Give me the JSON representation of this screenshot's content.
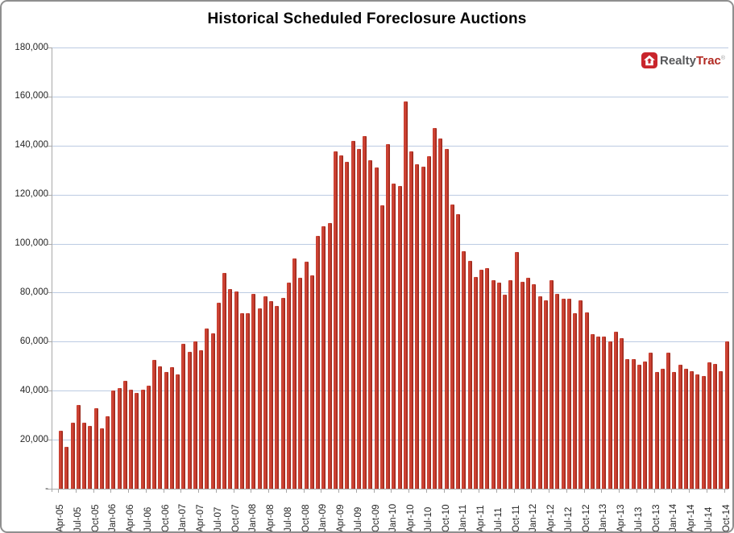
{
  "title": "Historical Scheduled Foreclosure Auctions",
  "logo": {
    "realty": "Realty",
    "trac": "Trac",
    "registered_mark": "®",
    "icon": "house-icon",
    "realty_color": "#58595b",
    "trac_color": "#b22a23",
    "box_color": "#c9252c"
  },
  "chart_data": {
    "type": "bar",
    "title": "Historical Scheduled Foreclosure Auctions",
    "xlabel": "",
    "ylabel": "",
    "ylim": [
      0,
      180000
    ],
    "y_tick_step": 20000,
    "y_tick_labels_top_down": [
      "180,000",
      "160,000",
      "140,000",
      "120,000",
      "100,000",
      "80,000",
      "60,000",
      "40,000",
      "20,000",
      "-"
    ],
    "x_label_every": 3,
    "grid": true,
    "legend": "none",
    "gridline_color": "#bccbe2",
    "axis_color": "#a8a8a8",
    "bar_color": "#c0392b",
    "bar_gradient": [
      "#b23222",
      "#d04536",
      "#cd4133",
      "#a52c1f",
      "#8e2316"
    ],
    "categories": [
      "Apr-05",
      "May-05",
      "Jun-05",
      "Jul-05",
      "Aug-05",
      "Sep-05",
      "Oct-05",
      "Nov-05",
      "Dec-05",
      "Jan-06",
      "Feb-06",
      "Mar-06",
      "Apr-06",
      "May-06",
      "Jun-06",
      "Jul-06",
      "Aug-06",
      "Sep-06",
      "Oct-06",
      "Nov-06",
      "Dec-06",
      "Jan-07",
      "Feb-07",
      "Mar-07",
      "Apr-07",
      "May-07",
      "Jun-07",
      "Jul-07",
      "Aug-07",
      "Sep-07",
      "Oct-07",
      "Nov-07",
      "Dec-07",
      "Jan-08",
      "Feb-08",
      "Mar-08",
      "Apr-08",
      "May-08",
      "Jun-08",
      "Jul-08",
      "Aug-08",
      "Sep-08",
      "Oct-08",
      "Nov-08",
      "Dec-08",
      "Jan-09",
      "Feb-09",
      "Mar-09",
      "Apr-09",
      "May-09",
      "Jun-09",
      "Jul-09",
      "Aug-09",
      "Sep-09",
      "Oct-09",
      "Nov-09",
      "Dec-09",
      "Jan-10",
      "Feb-10",
      "Mar-10",
      "Apr-10",
      "May-10",
      "Jun-10",
      "Jul-10",
      "Aug-10",
      "Sep-10",
      "Oct-10",
      "Nov-10",
      "Dec-10",
      "Jan-11",
      "Feb-11",
      "Mar-11",
      "Apr-11",
      "May-11",
      "Jun-11",
      "Jul-11",
      "Aug-11",
      "Sep-11",
      "Oct-11",
      "Nov-11",
      "Dec-11",
      "Jan-12",
      "Feb-12",
      "Mar-12",
      "Apr-12",
      "May-12",
      "Jun-12",
      "Jul-12",
      "Aug-12",
      "Sep-12",
      "Oct-12",
      "Nov-12",
      "Dec-12",
      "Jan-13",
      "Feb-13",
      "Mar-13",
      "Apr-13",
      "May-13",
      "Jun-13",
      "Jul-13",
      "Aug-13",
      "Sep-13",
      "Oct-13",
      "Nov-13",
      "Dec-13",
      "Jan-14",
      "Feb-14",
      "Mar-14",
      "Apr-14",
      "May-14",
      "Jun-14",
      "Jul-14",
      "Aug-14",
      "Sep-14",
      "Oct-14"
    ],
    "values": [
      23500,
      17000,
      27000,
      34000,
      27000,
      25500,
      33000,
      24500,
      29500,
      40000,
      41000,
      44000,
      40500,
      39000,
      40500,
      42000,
      52500,
      50000,
      47500,
      49500,
      46500,
      59000,
      56000,
      60000,
      56500,
      65500,
      63500,
      76000,
      88000,
      81500,
      80500,
      71500,
      71500,
      79500,
      73500,
      78500,
      76500,
      74500,
      78000,
      84000,
      94000,
      86000,
      92500,
      87000,
      103000,
      107000,
      108500,
      137500,
      136000,
      133500,
      142000,
      138500,
      144000,
      134000,
      131000,
      115500,
      140500,
      124500,
      123500,
      158000,
      137500,
      132500,
      131500,
      135500,
      147000,
      143000,
      138500,
      116000,
      112000,
      97000,
      93000,
      86500,
      89500,
      90000,
      85000,
      84000,
      79000,
      85000,
      96500,
      84500,
      86000,
      83500,
      78500,
      77000,
      85000,
      79500,
      77500,
      77500,
      71500,
      77000,
      72000,
      63000,
      62000,
      62000,
      60000,
      64000,
      61500,
      53000,
      53000,
      50500,
      52000,
      55500,
      47500,
      49000,
      55500,
      47500,
      50500,
      49000,
      48000,
      46500,
      46000,
      51500,
      51000,
      48000,
      60000
    ]
  }
}
